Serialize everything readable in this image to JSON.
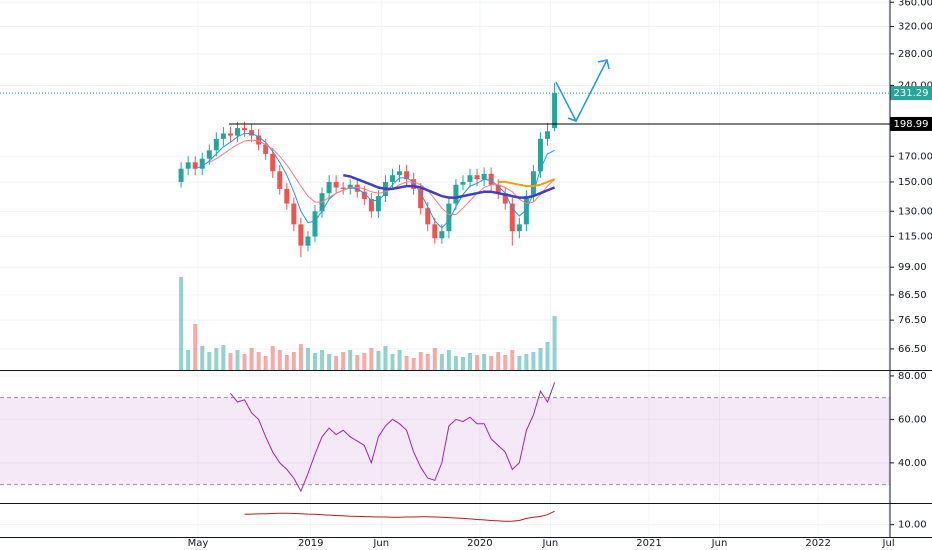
{
  "chart_data": [
    {
      "type": "candlestick",
      "log_scale": true,
      "grid": true,
      "up_color": "#26a69a",
      "down_color": "#ef5350",
      "xlim": [
        -10.05,
        53.1
      ],
      "xticks": [
        {
          "value": 4,
          "label": "May"
        },
        {
          "value": 12,
          "label": "2019"
        },
        {
          "value": 17,
          "label": "Jun"
        },
        {
          "value": 24,
          "label": "2020"
        },
        {
          "value": 29,
          "label": "Jun"
        },
        {
          "value": 36,
          "label": "2021"
        },
        {
          "value": 41,
          "label": "Jun"
        },
        {
          "value": 48,
          "label": "2022"
        },
        {
          "value": 53,
          "label": "Jul"
        }
      ],
      "ylim": [
        60,
        364
      ],
      "yticks": [
        {
          "value": 360,
          "label": "360.00"
        },
        {
          "value": 320,
          "label": "320.00"
        },
        {
          "value": 280,
          "label": "280.00"
        },
        {
          "value": 240,
          "label": "240.00"
        },
        {
          "value": 170,
          "label": "170.00"
        },
        {
          "value": 150,
          "label": "150.00"
        },
        {
          "value": 130,
          "label": "130.00"
        },
        {
          "value": 115,
          "label": "115.00"
        },
        {
          "value": 99,
          "label": "99.00"
        },
        {
          "value": 86.5,
          "label": "86.50"
        },
        {
          "value": 76.5,
          "label": "76.50"
        },
        {
          "value": 66.5,
          "label": "66.50"
        }
      ],
      "x": [
        2.8,
        3.3,
        3.8,
        4.3,
        4.8,
        5.3,
        5.8,
        6.3,
        6.8,
        7.3,
        7.8,
        8.3,
        8.8,
        9.3,
        9.8,
        10.3,
        10.8,
        11.3,
        11.8,
        12.3,
        12.8,
        13.3,
        13.8,
        14.3,
        14.8,
        15.3,
        15.8,
        16.3,
        16.8,
        17.3,
        17.8,
        18.3,
        18.8,
        19.3,
        19.8,
        20.3,
        20.8,
        21.3,
        21.8,
        22.3,
        22.8,
        23.3,
        23.8,
        24.3,
        24.8,
        25.3,
        25.8,
        26.3,
        26.8,
        27.3,
        27.8,
        28.3,
        28.8,
        29.3
      ],
      "open": [
        150,
        160,
        165,
        160,
        168,
        175,
        185,
        190,
        188,
        195,
        193,
        188,
        180,
        172,
        158,
        145,
        135,
        122,
        110,
        115,
        130,
        142,
        150,
        146,
        145,
        148,
        143,
        138,
        130,
        140,
        150,
        155,
        158,
        152,
        145,
        132,
        122,
        114,
        118,
        135,
        148,
        150,
        155,
        152,
        156,
        148,
        142,
        135,
        118,
        122,
        140,
        158,
        185,
        195
      ],
      "high": [
        165,
        170,
        170,
        173,
        180,
        191,
        196,
        196,
        201,
        201,
        199,
        194,
        185,
        177,
        163,
        149,
        139,
        126,
        118,
        134,
        146,
        155,
        155,
        150,
        152,
        152,
        147,
        142,
        144,
        155,
        160,
        163,
        163,
        157,
        149,
        136,
        126,
        122,
        139,
        152,
        155,
        160,
        160,
        161,
        161,
        152,
        146,
        139,
        126,
        144,
        163,
        191,
        200,
        243
      ],
      "low": [
        146,
        155,
        155,
        155,
        163,
        170,
        179,
        182,
        182,
        187,
        182,
        175,
        167,
        153,
        141,
        131,
        118,
        104,
        107,
        112,
        126,
        138,
        142,
        141,
        141,
        139,
        134,
        126,
        126,
        136,
        146,
        150,
        147,
        141,
        128,
        118,
        111,
        111,
        114,
        131,
        144,
        146,
        147,
        147,
        144,
        138,
        131,
        110,
        114,
        118,
        136,
        153,
        179,
        192
      ],
      "close": [
        160,
        165,
        160,
        168,
        175,
        185,
        190,
        188,
        195,
        193,
        188,
        180,
        172,
        158,
        145,
        135,
        122,
        110,
        115,
        130,
        142,
        150,
        146,
        145,
        148,
        143,
        138,
        130,
        140,
        150,
        155,
        158,
        152,
        145,
        132,
        122,
        114,
        118,
        135,
        148,
        150,
        155,
        152,
        156,
        148,
        142,
        135,
        118,
        122,
        140,
        158,
        185,
        192,
        231.29
      ],
      "volume": [
        93,
        20,
        46,
        24,
        18,
        22,
        25,
        17,
        20,
        16,
        22,
        18,
        14,
        24,
        20,
        15,
        18,
        26,
        22,
        17,
        20,
        16,
        14,
        18,
        20,
        15,
        17,
        22,
        19,
        24,
        16,
        20,
        14,
        12,
        18,
        16,
        22,
        16,
        20,
        14,
        13,
        17,
        15,
        16,
        14,
        18,
        15,
        20,
        14,
        16,
        18,
        22,
        28,
        54
      ],
      "volume_lim": [
        0,
        100
      ],
      "series": [
        {
          "color": "#2196f3",
          "values": [
            null,
            null,
            160,
            162,
            166,
            172,
            178,
            182,
            187,
            190,
            190,
            187,
            182,
            174,
            165,
            155,
            143,
            130,
            123,
            124,
            130,
            138,
            142,
            144,
            146,
            145,
            142,
            137,
            137,
            142,
            148,
            153,
            153,
            150,
            142,
            133,
            124,
            120,
            124,
            133,
            141,
            147,
            149,
            152,
            151,
            147,
            142,
            132,
            127,
            131,
            142,
            160,
            172,
            175
          ]
        },
        {
          "color": "#f77c80",
          "values": [
            null,
            null,
            null,
            null,
            165,
            168,
            172,
            176,
            180,
            183,
            184,
            183,
            180,
            176,
            170,
            163,
            155,
            147,
            140,
            136,
            136,
            139,
            142,
            144,
            146,
            146,
            145,
            143,
            142,
            143,
            145,
            148,
            150,
            150,
            148,
            144,
            138,
            132,
            128,
            128,
            132,
            137,
            142,
            146,
            148,
            148,
            146,
            143,
            138,
            135,
            136,
            141,
            147,
            152
          ]
        },
        {
          "color": "#3f3fbf",
          "width": 2.5,
          "values": [
            null,
            null,
            null,
            null,
            null,
            null,
            null,
            null,
            null,
            null,
            null,
            null,
            null,
            null,
            null,
            null,
            null,
            null,
            null,
            null,
            null,
            null,
            null,
            155,
            154,
            152,
            150,
            148,
            146,
            145,
            145,
            146,
            147,
            147,
            146,
            144,
            142,
            140,
            139,
            139,
            140,
            141,
            142,
            143,
            143,
            142,
            141,
            140,
            139,
            139,
            140,
            142,
            144,
            146
          ]
        },
        {
          "color": "#ff9800",
          "width": 2,
          "values": [
            null,
            null,
            null,
            null,
            null,
            null,
            null,
            null,
            null,
            null,
            null,
            null,
            null,
            null,
            null,
            null,
            null,
            null,
            null,
            null,
            null,
            null,
            null,
            null,
            null,
            null,
            null,
            null,
            null,
            null,
            null,
            null,
            null,
            null,
            null,
            null,
            null,
            null,
            null,
            null,
            null,
            null,
            null,
            null,
            null,
            150,
            150,
            149,
            148,
            147,
            147,
            148,
            150,
            152
          ]
        }
      ],
      "levels": [
        {
          "value": 231.29,
          "label": "231.29",
          "color": "#26a69a",
          "dotted": true
        },
        {
          "value": 198.99,
          "label": "198.99",
          "color": "#000000",
          "from": 6.2
        }
      ]
    },
    {
      "type": "line",
      "ylim": [
        22,
        81.8
      ],
      "band": [
        30,
        70
      ],
      "band_color": "#9c27b0",
      "yticks": [
        {
          "value": 80,
          "label": "80.00"
        },
        {
          "value": 60,
          "label": "60.00"
        },
        {
          "value": 40,
          "label": "40.00"
        }
      ],
      "series": [
        {
          "color": "#9c27b0",
          "values": [
            null,
            null,
            null,
            null,
            null,
            null,
            null,
            72,
            68,
            69,
            63,
            60,
            52,
            45,
            40,
            37,
            33,
            27,
            35,
            44,
            52,
            56,
            53,
            55,
            52,
            50,
            48,
            40,
            52,
            57,
            60,
            58,
            55,
            45,
            38,
            33,
            32,
            40,
            57,
            60,
            59,
            61,
            58,
            58,
            51,
            48,
            45,
            37,
            40,
            55,
            62,
            73,
            68,
            77
          ]
        }
      ]
    },
    {
      "type": "line",
      "ylim": [
        4,
        20
      ],
      "yticks": [
        {
          "value": 10,
          "label": "10.00"
        }
      ],
      "series": [
        {
          "color": "#b71c1c",
          "values": [
            null,
            null,
            null,
            null,
            null,
            null,
            null,
            null,
            null,
            15.0,
            15.1,
            15.2,
            15.3,
            15.4,
            15.5,
            15.5,
            15.4,
            15.3,
            15.1,
            15.0,
            14.8,
            14.6,
            14.4,
            14.3,
            14.1,
            14.0,
            13.9,
            13.8,
            13.7,
            13.7,
            13.6,
            13.6,
            13.7,
            13.7,
            13.8,
            13.8,
            13.7,
            13.6,
            13.4,
            13.2,
            13.0,
            12.8,
            12.5,
            12.3,
            12.0,
            11.8,
            11.6,
            11.7,
            12.0,
            13.0,
            13.6,
            14.0,
            14.8,
            16.5
          ]
        }
      ]
    }
  ]
}
